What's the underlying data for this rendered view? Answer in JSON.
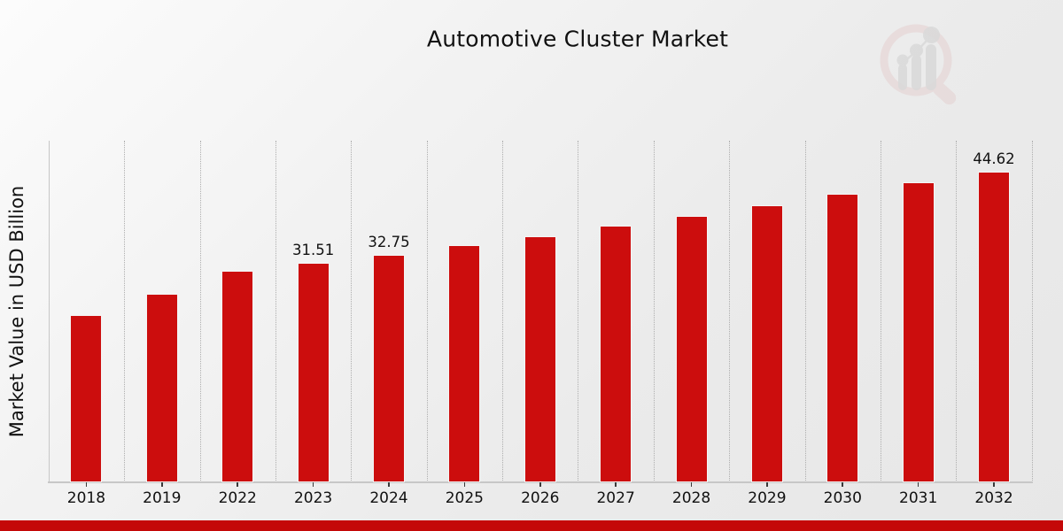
{
  "page": {
    "title": "Automotive Cluster Market"
  },
  "chart_data": {
    "type": "bar",
    "title": "Automotive Cluster Market",
    "xlabel": "",
    "ylabel": "Market Value in USD Billion",
    "categories": [
      "2018",
      "2019",
      "2022",
      "2023",
      "2024",
      "2025",
      "2026",
      "2027",
      "2028",
      "2029",
      "2030",
      "2031",
      "2032"
    ],
    "values": [
      24.08,
      27.07,
      30.4,
      31.51,
      32.75,
      34.07,
      35.42,
      36.83,
      38.3,
      39.82,
      41.41,
      43.06,
      44.62
    ],
    "data_labels": [
      "",
      "",
      "",
      "31.51",
      "32.75",
      "",
      "",
      "",
      "",
      "",
      "",
      "",
      "44.62"
    ],
    "unit": "USD Billion",
    "ylim": [
      0,
      49.1
    ],
    "y_axis_ticks_visible": false,
    "grid": "vertical-dotted-category-separators",
    "legend": "none",
    "bar_color": "#cc0d0d",
    "bar_edge_color": "#f4f4f4",
    "text_color": "#111111",
    "axis_color": "#c7c7c7",
    "gridline_color": "#aeaeae"
  },
  "footer": {
    "accent_color": "#c40808"
  },
  "watermark": {
    "name": "magnifier-growth-chart-logo"
  }
}
